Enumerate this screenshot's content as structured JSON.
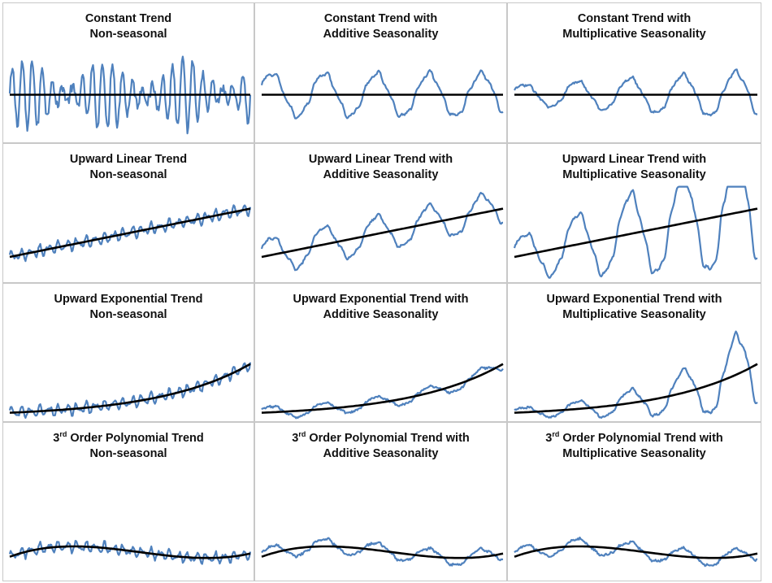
{
  "colors": {
    "series": "#4f81bd",
    "trend": "#000000",
    "border": "#c8c8c8"
  },
  "chart_data": [
    {
      "type": "line",
      "title_line1": "Constant Trend",
      "title_line2": "Non-seasonal",
      "trend": "constant",
      "seasonality": "none",
      "noise": "high"
    },
    {
      "type": "line",
      "title_line1": "Constant Trend with",
      "title_line2": "Additive Seasonality",
      "trend": "constant",
      "seasonality": "additive"
    },
    {
      "type": "line",
      "title_line1": "Constant Trend with",
      "title_line2": "Multiplicative Seasonality",
      "trend": "constant",
      "seasonality": "multiplicative"
    },
    {
      "type": "line",
      "title_line1": "Upward Linear Trend",
      "title_line2": "Non-seasonal",
      "trend": "linear",
      "seasonality": "none"
    },
    {
      "type": "line",
      "title_line1": "Upward Linear Trend with",
      "title_line2": "Additive Seasonality",
      "trend": "linear",
      "seasonality": "additive"
    },
    {
      "type": "line",
      "title_line1": "Upward Linear Trend with",
      "title_line2": "Multiplicative Seasonality",
      "trend": "linear",
      "seasonality": "multiplicative"
    },
    {
      "type": "line",
      "title_line1": "Upward Exponential Trend",
      "title_line2": "Non-seasonal",
      "trend": "exponential",
      "seasonality": "none"
    },
    {
      "type": "line",
      "title_line1": "Upward Exponential Trend with",
      "title_line2": "Additive Seasonality",
      "trend": "exponential",
      "seasonality": "additive"
    },
    {
      "type": "line",
      "title_line1": "Upward Exponential Trend with",
      "title_line2": "Multiplicative Seasonality",
      "trend": "exponential",
      "seasonality": "multiplicative"
    },
    {
      "type": "line",
      "title_sup_prefix": "3",
      "title_sup": "rd",
      "title_line1": " Order Polynomial Trend",
      "title_line2": "Non-seasonal",
      "trend": "polynomial",
      "seasonality": "none"
    },
    {
      "type": "line",
      "title_sup_prefix": "3",
      "title_sup": "rd",
      "title_line1": " Order Polynomial Trend with",
      "title_line2": "Additive Seasonality",
      "trend": "polynomial",
      "seasonality": "additive"
    },
    {
      "type": "line",
      "title_sup_prefix": "3",
      "title_sup": "rd",
      "title_line1": " Order Polynomial Trend with",
      "title_line2": "Multiplicative Seasonality",
      "trend": "polynomial",
      "seasonality": "multiplicative"
    }
  ]
}
